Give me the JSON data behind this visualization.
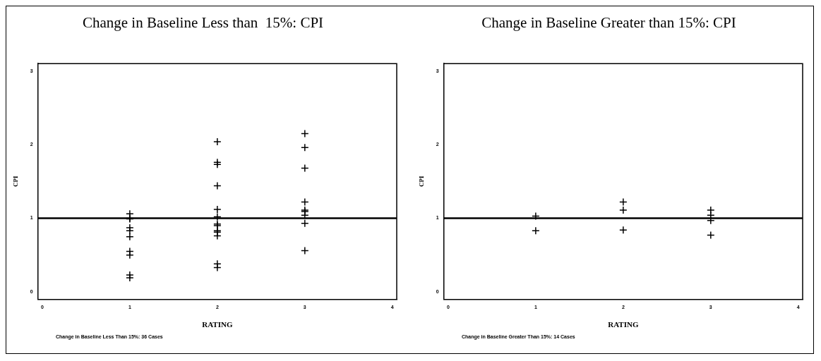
{
  "chart_data": [
    {
      "type": "scatter",
      "title": "Change in Baseline Less than  15%: CPI",
      "xlabel": "RATING",
      "ylabel": "CPI",
      "marker": "cross",
      "color": "#000000",
      "x": [
        1,
        1,
        1,
        1,
        1,
        1,
        1,
        1,
        1,
        1,
        2,
        2,
        2,
        2,
        2,
        2,
        2,
        2,
        2,
        2,
        2,
        2,
        2,
        3,
        3,
        3,
        3,
        3,
        3,
        3,
        3,
        3
      ],
      "values": [
        1.06,
        1.0,
        0.99,
        0.87,
        0.83,
        0.75,
        0.55,
        0.5,
        0.23,
        0.19,
        2.04,
        1.76,
        1.73,
        1.44,
        1.12,
        1.02,
        0.92,
        0.9,
        0.83,
        0.81,
        0.76,
        0.38,
        0.33,
        2.15,
        1.96,
        1.68,
        1.22,
        1.11,
        1.09,
        1.04,
        0.93,
        0.56
      ],
      "xlim": [
        -0.05,
        4.05
      ],
      "xticks": [
        0,
        1,
        2,
        3,
        4
      ],
      "ylim": [
        -0.1,
        3.1
      ],
      "yticks": [
        0,
        1,
        2,
        3
      ],
      "ref_lines": [
        {
          "axis": "y",
          "value": 1,
          "color": "#000000"
        }
      ],
      "annotations": [
        "Change in Baseline Less Than 15%:  36 Cases"
      ]
    },
    {
      "type": "scatter",
      "title": "Change in Baseline Greater than 15%: CPI",
      "xlabel": "RATING",
      "ylabel": "CPI",
      "marker": "cross",
      "color": "#000000",
      "x": [
        1,
        1,
        2,
        2,
        2,
        3,
        3,
        3,
        3
      ],
      "values": [
        1.03,
        0.83,
        1.22,
        1.11,
        0.84,
        1.11,
        1.04,
        0.97,
        0.77
      ],
      "xlim": [
        -0.05,
        4.05
      ],
      "xticks": [
        0,
        1,
        2,
        3,
        4
      ],
      "ylim": [
        -0.1,
        3.1
      ],
      "yticks": [
        0,
        1,
        2,
        3
      ],
      "ref_lines": [
        {
          "axis": "y",
          "value": 1,
          "color": "#000000"
        }
      ],
      "annotations": [
        "Change in Baseline Greater Than 15%: 14 Cases"
      ]
    }
  ]
}
